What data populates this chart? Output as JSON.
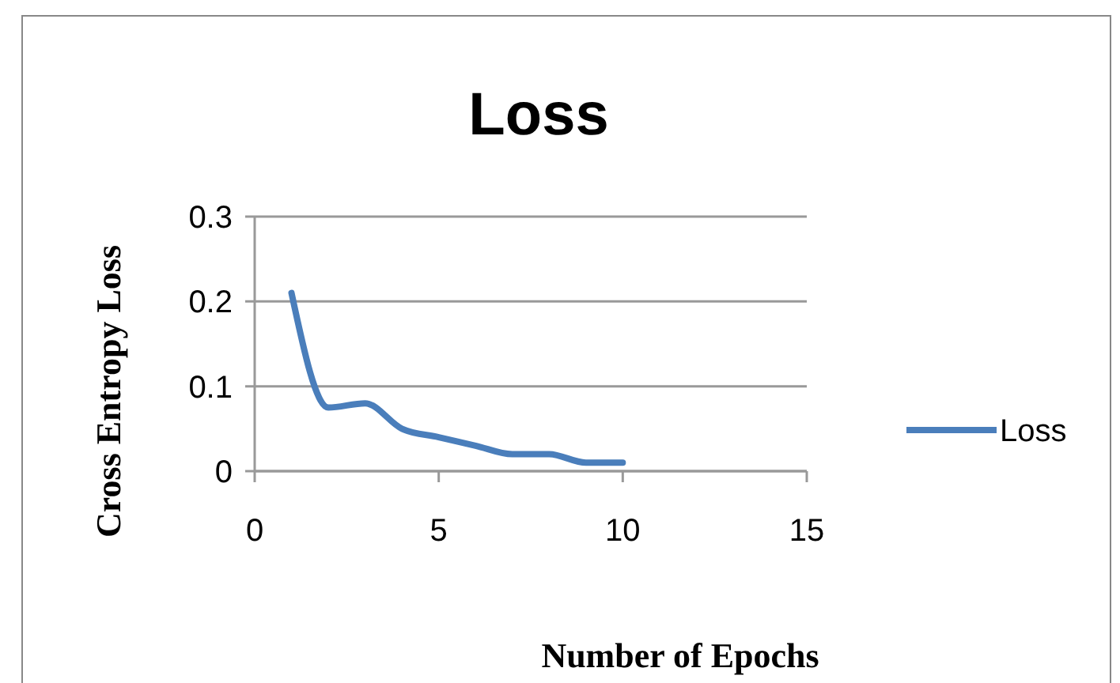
{
  "chart_data": {
    "type": "line",
    "title": "Loss",
    "xlabel": "Number of Epochs",
    "ylabel": "Cross Entropy Loss",
    "x": [
      1,
      2,
      3,
      4,
      5,
      6,
      7,
      8,
      9,
      10
    ],
    "series": [
      {
        "name": "Loss",
        "color": "#4a7ebb",
        "values": [
          0.21,
          0.075,
          0.08,
          0.05,
          0.04,
          0.03,
          0.02,
          0.02,
          0.01,
          0.01
        ]
      }
    ],
    "xlim": [
      0,
      15
    ],
    "xticks": [
      0,
      5,
      10,
      15
    ],
    "ylim": [
      0,
      0.3
    ],
    "yticks": [
      0,
      0.1,
      0.2,
      0.3
    ],
    "grid": "y",
    "legend": "right",
    "marker": "none",
    "line_style": "solid"
  }
}
